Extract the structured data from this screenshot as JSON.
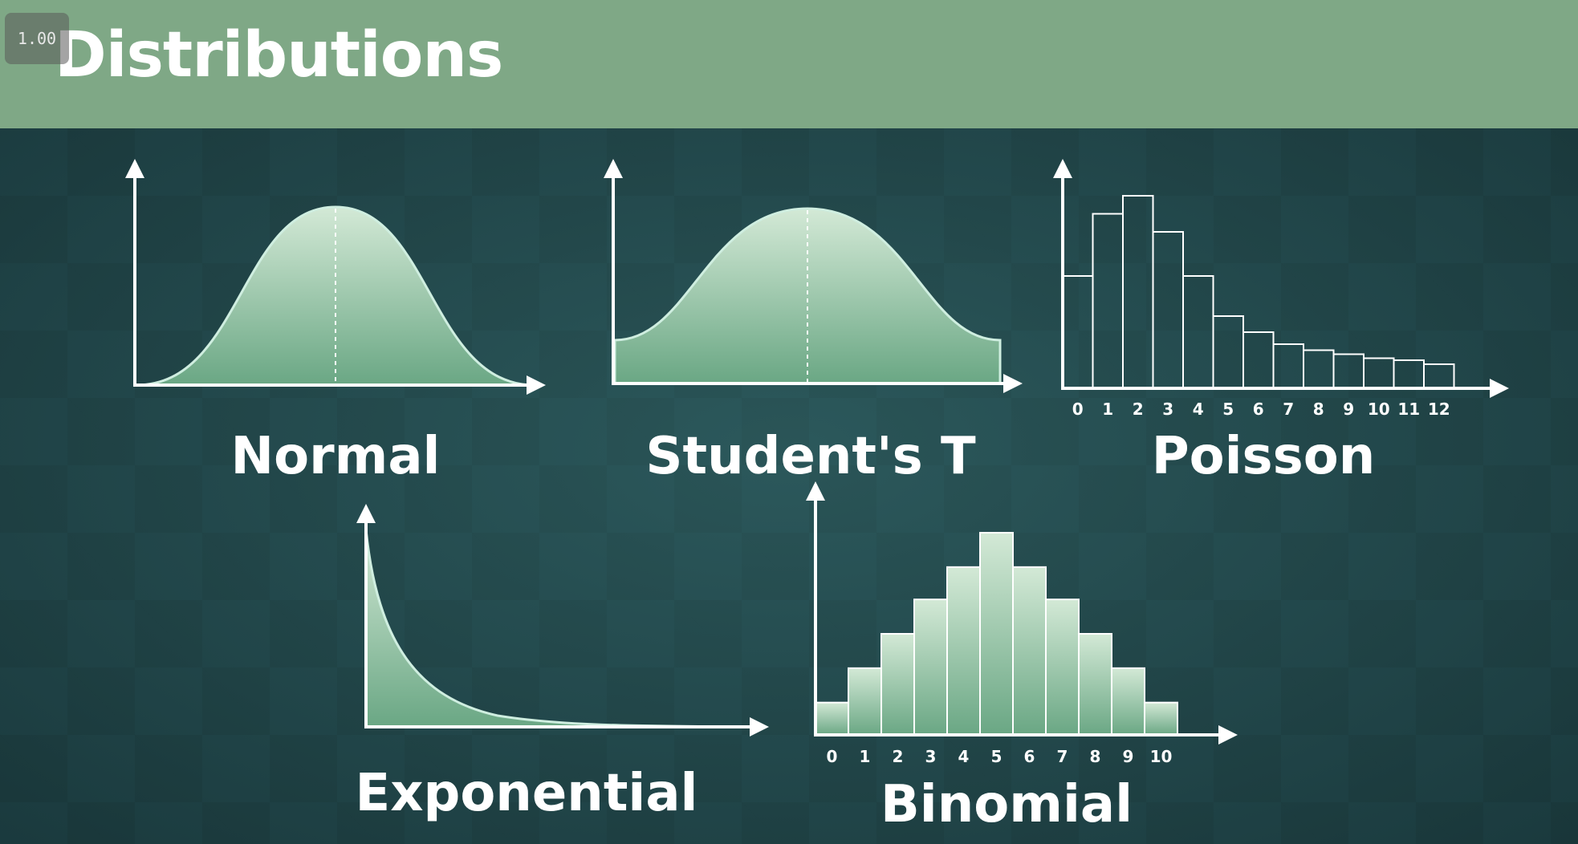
{
  "header": {
    "title": "Distributions",
    "zoom_badge": "1.00"
  },
  "colors": {
    "header_bg": "#7fa886",
    "fill_light": "#cfe6d4",
    "fill_dark": "#6fae86",
    "line": "#ffffff"
  },
  "distributions": {
    "normal": {
      "label": "Normal"
    },
    "students_t": {
      "label": "Student's T"
    },
    "poisson": {
      "label": "Poisson",
      "ticks": [
        "0",
        "1",
        "2",
        "3",
        "4",
        "5",
        "6",
        "7",
        "8",
        "9",
        "10",
        "11",
        "12"
      ],
      "values": [
        0.56,
        0.87,
        0.96,
        0.78,
        0.56,
        0.36,
        0.28,
        0.22,
        0.19,
        0.17,
        0.15,
        0.14,
        0.12
      ]
    },
    "exponential": {
      "label": "Exponential"
    },
    "binomial": {
      "label": "Binomial",
      "ticks": [
        "0",
        "1",
        "2",
        "3",
        "4",
        "5",
        "6",
        "7",
        "8",
        "9",
        "10"
      ],
      "values": [
        0.16,
        0.33,
        0.5,
        0.67,
        0.83,
        1.0,
        0.83,
        0.67,
        0.5,
        0.33,
        0.16
      ]
    }
  }
}
